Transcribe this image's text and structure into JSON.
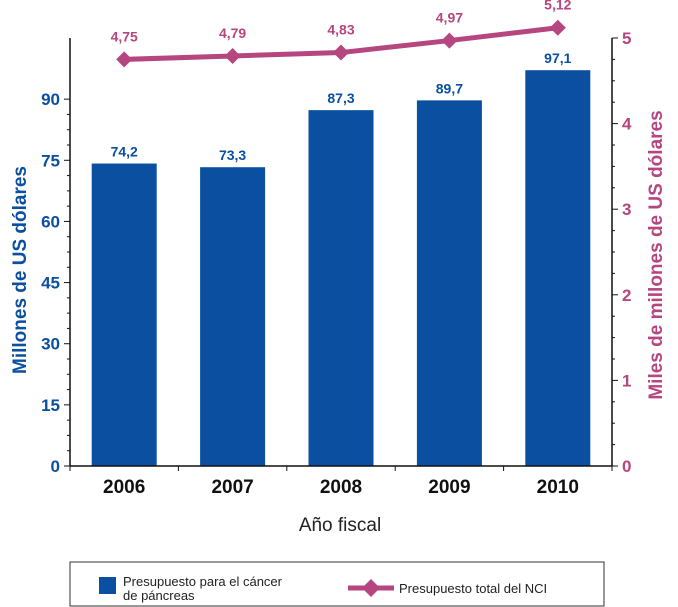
{
  "colors": {
    "bar": "#0a4fa0",
    "line": "#b5467f",
    "axis": "#111111",
    "left_axis_text": "#0a4fa0",
    "right_axis_text": "#b5467f"
  },
  "chart_data": {
    "type": "bar",
    "categories": [
      "2006",
      "2007",
      "2008",
      "2009",
      "2010"
    ],
    "series": [
      {
        "name": "Presupuesto para el cáncer de páncreas",
        "type": "bar",
        "axis": "left",
        "values": [
          74.2,
          73.3,
          87.3,
          89.7,
          97.1
        ],
        "labels": [
          "74,2",
          "73,3",
          "87,3",
          "89,7",
          "97,1"
        ]
      },
      {
        "name": "Presupuesto total del NCI",
        "type": "line",
        "axis": "right",
        "marker": "diamond",
        "values": [
          4.75,
          4.79,
          4.83,
          4.97,
          5.12
        ],
        "labels": [
          "4,75",
          "4,79",
          "4,83",
          "4,97",
          "5,12"
        ]
      }
    ],
    "xlabel": "Año fiscal",
    "ylabel": "Millones de US dólares",
    "y2label": "Miles de millones de US dólares",
    "ylim": [
      0,
      105
    ],
    "y2lim": [
      0,
      5
    ],
    "yticks": [
      0,
      15,
      30,
      45,
      60,
      75,
      90
    ],
    "y2ticks": [
      0,
      1,
      2,
      3,
      4,
      5
    ],
    "grid": false,
    "legend_position": "bottom",
    "legend": [
      {
        "label_line1": "Presupuesto para el cáncer",
        "label_line2": "de páncreas",
        "kind": "bar-square"
      },
      {
        "label_line1": "Presupuesto total del NCI",
        "label_line2": "",
        "kind": "line-diamond"
      }
    ]
  }
}
